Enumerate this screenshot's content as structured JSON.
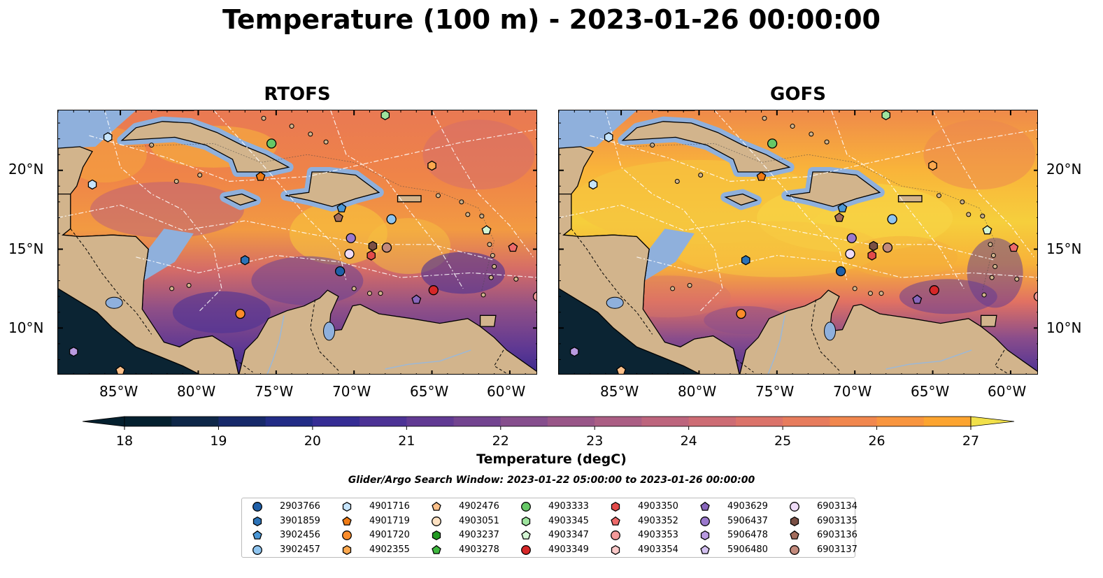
{
  "title": "Temperature (100 m) - 2023-01-26 00:00:00",
  "panels": [
    {
      "title": "RTOFS",
      "variant": "rtofs"
    },
    {
      "title": "GOFS",
      "variant": "gofs"
    }
  ],
  "axes": {
    "lat_labels": [
      "20°N",
      "15°N",
      "10°N"
    ],
    "lon_labels": [
      "85°W",
      "80°W",
      "75°W",
      "70°W",
      "65°W",
      "60°W"
    ],
    "lon_range": [
      -89,
      -58.2
    ],
    "lat_range": [
      7,
      23.8
    ]
  },
  "colorbar": {
    "label": "Temperature (degC)",
    "ticks": [
      "18",
      "19",
      "20",
      "21",
      "22",
      "23",
      "24",
      "25",
      "26",
      "27"
    ],
    "min": 18,
    "max": 27,
    "step": 0.5,
    "colors": [
      "#04202f",
      "#0e2748",
      "#17296a",
      "#222c86",
      "#362d94",
      "#4c3295",
      "#613a93",
      "#734490",
      "#864e8d",
      "#995688",
      "#ab5e84",
      "#bd657d",
      "#cd6c74",
      "#db736a",
      "#e77c5d",
      "#f1874e",
      "#f8953f",
      "#fca430",
      "#fdb62e",
      "#f8cb39",
      "#f1e04a"
    ]
  },
  "search_window": "Glider/Argo Search Window: 2023-01-22 05:00:00 to 2023-01-26 00:00:00",
  "legend": [
    {
      "id": "2903766",
      "marker": "circle",
      "color": "#1f5fa8"
    },
    {
      "id": "3901859",
      "marker": "hexagon",
      "color": "#2c73b8"
    },
    {
      "id": "3902456",
      "marker": "pentagon",
      "color": "#4a97d6"
    },
    {
      "id": "3902457",
      "marker": "circle",
      "color": "#8ec4ef"
    },
    {
      "id": "4901716",
      "marker": "hexagon",
      "color": "#c6e4fb"
    },
    {
      "id": "4901719",
      "marker": "pentagon",
      "color": "#f07b14"
    },
    {
      "id": "4901720",
      "marker": "circle",
      "color": "#fb8c2a"
    },
    {
      "id": "4902355",
      "marker": "hexagon",
      "color": "#fca84e"
    },
    {
      "id": "4902476",
      "marker": "pentagon",
      "color": "#fcc08a"
    },
    {
      "id": "4903051",
      "marker": "circle",
      "color": "#fde1c2"
    },
    {
      "id": "4903237",
      "marker": "hexagon",
      "color": "#229a22"
    },
    {
      "id": "4903278",
      "marker": "pentagon",
      "color": "#3fb83f"
    },
    {
      "id": "4903333",
      "marker": "circle",
      "color": "#66c866"
    },
    {
      "id": "4903345",
      "marker": "hexagon",
      "color": "#9ee49e"
    },
    {
      "id": "4903347",
      "marker": "pentagon",
      "color": "#d4f6d4"
    },
    {
      "id": "4903349",
      "marker": "circle",
      "color": "#d62728"
    },
    {
      "id": "4903350",
      "marker": "hexagon",
      "color": "#e34a4a"
    },
    {
      "id": "4903352",
      "marker": "pentagon",
      "color": "#ee6a6a"
    },
    {
      "id": "4903353",
      "marker": "circle",
      "color": "#f49a9a"
    },
    {
      "id": "4903354",
      "marker": "hexagon",
      "color": "#fac8c8"
    },
    {
      "id": "4903629",
      "marker": "pentagon",
      "color": "#8866bb"
    },
    {
      "id": "5906437",
      "marker": "circle",
      "color": "#9a78cc"
    },
    {
      "id": "5906478",
      "marker": "hexagon",
      "color": "#b99ae0"
    },
    {
      "id": "5906480",
      "marker": "pentagon",
      "color": "#d3c0f0"
    },
    {
      "id": "6903134",
      "marker": "circle",
      "color": "#efdcf8"
    },
    {
      "id": "6903135",
      "marker": "hexagon",
      "color": "#7a4f44"
    },
    {
      "id": "6903136",
      "marker": "pentagon",
      "color": "#a36c5c"
    },
    {
      "id": "6903137",
      "marker": "circle",
      "color": "#c38a7c"
    }
  ],
  "floats": [
    {
      "id": "2903766",
      "lon": -70.9,
      "lat": 13.6
    },
    {
      "id": "3901859",
      "lon": -77.0,
      "lat": 14.3
    },
    {
      "id": "3902456",
      "lon": -70.8,
      "lat": 17.6
    },
    {
      "id": "3902457",
      "lon": -67.6,
      "lat": 16.9
    },
    {
      "id": "4901716",
      "lon": -86.8,
      "lat": 19.1
    },
    {
      "id": "4901716",
      "lon": -85.8,
      "lat": 22.1
    },
    {
      "id": "4901719",
      "lon": -76.0,
      "lat": 19.6
    },
    {
      "id": "4901720",
      "lon": -77.3,
      "lat": 10.9
    },
    {
      "id": "4902355",
      "lon": -65.0,
      "lat": 20.3
    },
    {
      "id": "4902476",
      "lon": -85.0,
      "lat": 7.3
    },
    {
      "id": "4903333",
      "lon": -75.3,
      "lat": 21.7
    },
    {
      "id": "4903345",
      "lon": -68.0,
      "lat": 23.5
    },
    {
      "id": "4903347",
      "lon": -61.5,
      "lat": 16.2
    },
    {
      "id": "4903349",
      "lon": -64.9,
      "lat": 12.4
    },
    {
      "id": "4903350",
      "lon": -68.9,
      "lat": 14.6
    },
    {
      "id": "4903352",
      "lon": -59.8,
      "lat": 15.1
    },
    {
      "id": "4903353",
      "lon": -58.2,
      "lat": 12.0
    },
    {
      "id": "4903629",
      "lon": -66.0,
      "lat": 11.8
    },
    {
      "id": "5906437",
      "lon": -70.2,
      "lat": 15.7
    },
    {
      "id": "5906478",
      "lon": -88.0,
      "lat": 8.5
    },
    {
      "id": "6903134",
      "lon": -70.3,
      "lat": 14.7
    },
    {
      "id": "6903135",
      "lon": -68.8,
      "lat": 15.2
    },
    {
      "id": "6903136",
      "lon": -71.0,
      "lat": 17.0
    },
    {
      "id": "6903137",
      "lon": -67.9,
      "lat": 15.1
    }
  ]
}
